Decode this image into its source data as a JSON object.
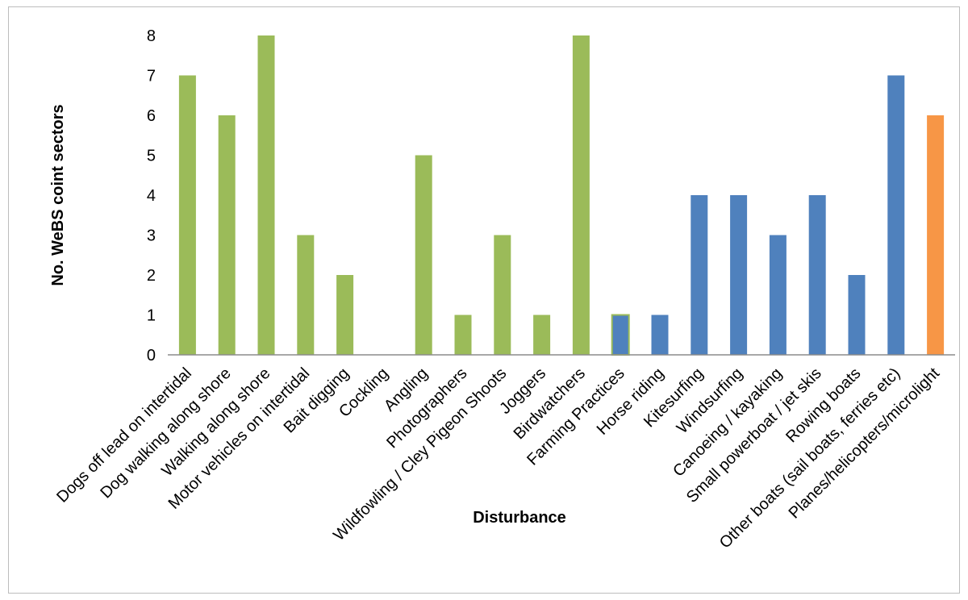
{
  "chart_data": {
    "type": "bar",
    "xlabel": "Disturbance",
    "ylabel": "No. WeBS coint sectors",
    "ylim": [
      0,
      8
    ],
    "yticks": [
      0,
      1,
      2,
      3,
      4,
      5,
      6,
      7,
      8
    ],
    "grid": false,
    "categories": [
      "Dogs off lead on intertidal",
      "Dog walking along shore",
      "Walking along shore",
      "Motor vehicles on intertidal",
      "Bait digging",
      "Cockling",
      "Angling",
      "Photographers",
      "Wildfowling / Cley Pigeon Shoots",
      "Joggers",
      "Birdwatchers",
      "Farming Practices",
      "Horse riding",
      "Kitesurfing",
      "Windsurfing",
      "Canoeing / kayaking",
      "Small powerboat / jet skis",
      "Rowing boats",
      "Other boats (sail boats, ferries etc)",
      "Planes/helicopters/microlight"
    ],
    "values": [
      7,
      6,
      8,
      3,
      2,
      0,
      5,
      1,
      3,
      1,
      8,
      1,
      1,
      4,
      4,
      3,
      4,
      2,
      7,
      6
    ],
    "colors": {
      "green": "#9bbb59",
      "blue": "#4f81bd",
      "orange": "#f79646"
    },
    "bar_colors": [
      "green",
      "green",
      "green",
      "green",
      "green",
      "green",
      "green",
      "green",
      "green",
      "green",
      "green",
      "mixed",
      "blue",
      "blue",
      "blue",
      "blue",
      "blue",
      "blue",
      "blue",
      "orange"
    ]
  }
}
